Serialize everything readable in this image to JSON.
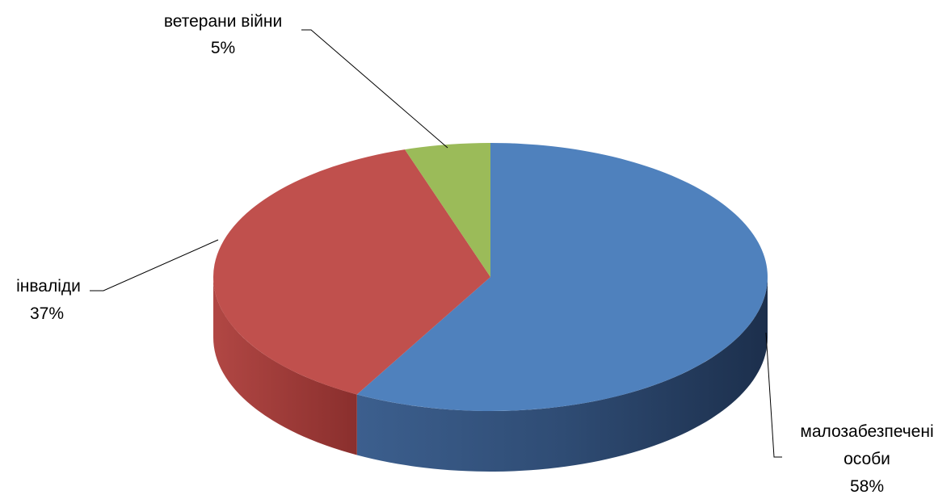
{
  "chart_data": {
    "type": "pie",
    "style": "3d",
    "title": "",
    "legend": "none",
    "categories": [
      "малозабезпечені особи",
      "інваліди",
      "ветерани війни"
    ],
    "values": [
      58,
      37,
      5
    ],
    "unit": "%",
    "slices": [
      {
        "name": "малозабезпечені особи",
        "label_lines": [
          "малозабезпечені",
          "особи"
        ],
        "value_label": "58%",
        "value": 58,
        "color": "#4f81bd",
        "side_color": "#2a4a72"
      },
      {
        "name": "інваліди",
        "label_lines": [
          "інваліди"
        ],
        "value_label": "37%",
        "value": 37,
        "color": "#c0504d",
        "side_color": "#8e3230"
      },
      {
        "name": "ветерани війни",
        "label_lines": [
          "ветерани війни"
        ],
        "value_label": "5%",
        "value": 5,
        "color": "#9bbb59",
        "side_color": "#6f8a3c"
      }
    ]
  }
}
